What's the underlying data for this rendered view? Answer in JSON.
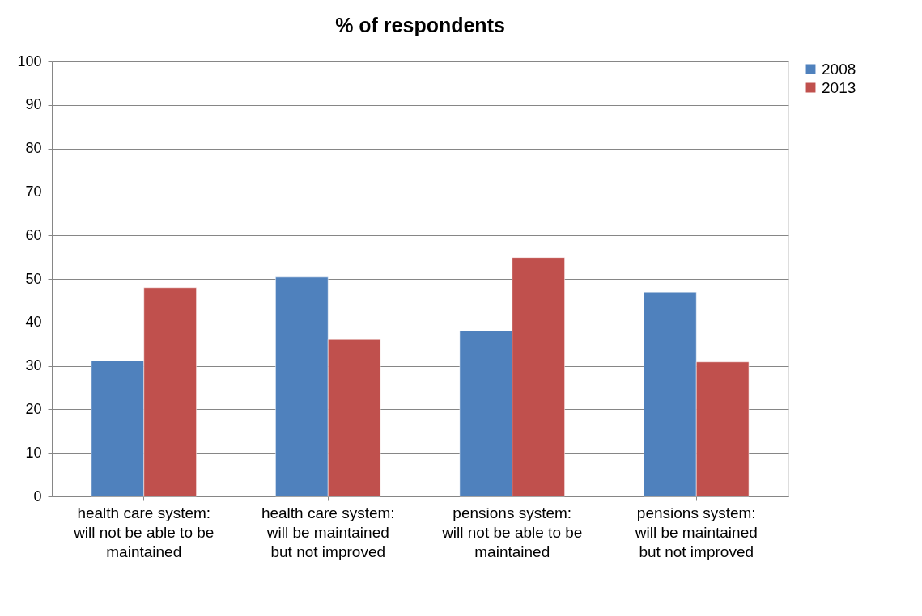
{
  "chart_data": {
    "type": "bar",
    "title": "% of respondents",
    "categories": [
      "health care system:\nwill not be able to be\nmaintained",
      "health care system:\nwill be maintained\nbut not improved",
      "pensions system:\nwill not be able to be\nmaintained",
      "pensions system:\nwill be maintained\nbut not improved"
    ],
    "series": [
      {
        "name": "2008",
        "color": "#4f81bd",
        "values": [
          31.2,
          50.4,
          38.1,
          47.0
        ]
      },
      {
        "name": "2013",
        "color": "#c0504d",
        "values": [
          48.0,
          36.2,
          54.9,
          30.9
        ]
      }
    ],
    "ylim": [
      0,
      100
    ],
    "yticks": [
      0,
      10,
      20,
      30,
      40,
      50,
      60,
      70,
      80,
      90,
      100
    ],
    "grid": "y",
    "legend": "right"
  }
}
